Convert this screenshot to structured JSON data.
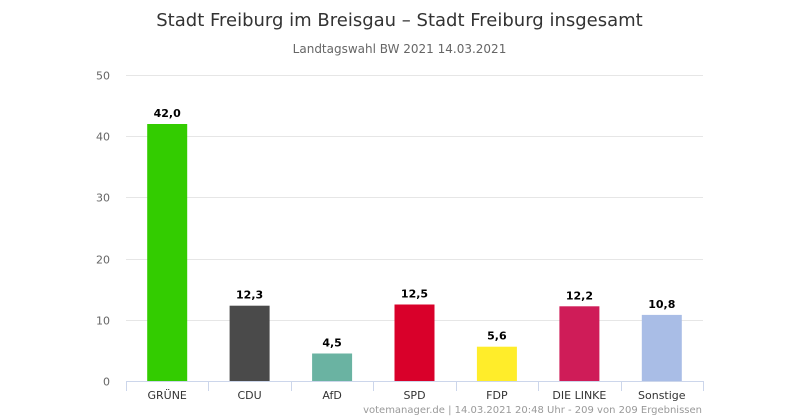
{
  "chart_data": {
    "type": "bar",
    "title": "Stadt Freiburg im Breisgau – Stadt Freiburg insgesamt",
    "subtitle": "Landtagswahl BW 2021 14.03.2021",
    "xlabel": "",
    "ylabel": "",
    "ylim": [
      0,
      50
    ],
    "yticks": [
      0,
      10,
      20,
      30,
      40,
      50
    ],
    "grid": true,
    "categories": [
      "GRÜNE",
      "CDU",
      "AfD",
      "SPD",
      "FDP",
      "DIE LINKE",
      "Sonstige"
    ],
    "values": [
      42.0,
      12.3,
      4.5,
      12.5,
      5.6,
      12.2,
      10.8
    ],
    "value_labels": [
      "42,0",
      "12,3",
      "4,5",
      "12,5",
      "5,6",
      "12,2",
      "10,8"
    ],
    "colors": [
      "#33cc00",
      "#4a4a4a",
      "#6ab3a2",
      "#d9002a",
      "#ffed2a",
      "#cf1c58",
      "#a9bde6"
    ],
    "credit": "votemanager.de | 14.03.2021 20:48 Uhr - 209 von 209 Ergebnissen"
  }
}
